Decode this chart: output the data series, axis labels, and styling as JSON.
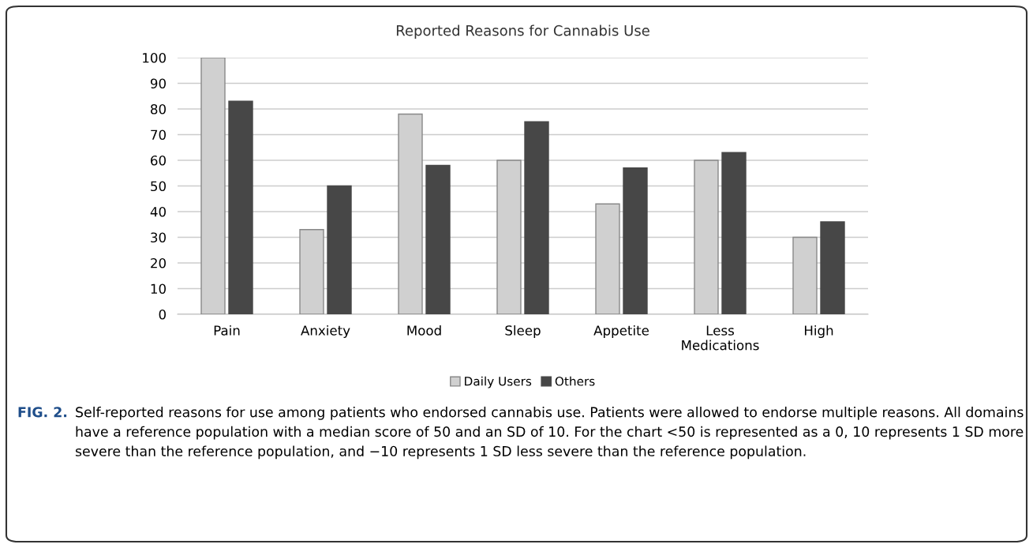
{
  "chart_data": {
    "type": "bar",
    "title": "Reported Reasons for Cannabis Use",
    "categories": [
      "Pain",
      "Anxiety",
      "Mood",
      "Sleep",
      "Appetite",
      "Less\nMedications",
      "High"
    ],
    "series": [
      {
        "name": "Daily Users",
        "color": "#d0d0d0",
        "values": [
          100,
          33,
          78,
          60,
          43,
          60,
          30
        ]
      },
      {
        "name": "Others",
        "color": "#474747",
        "values": [
          83,
          50,
          58,
          75,
          57,
          63,
          36
        ]
      }
    ],
    "ylim": [
      0,
      100
    ],
    "yticks": [
      0,
      10,
      20,
      30,
      40,
      50,
      60,
      70,
      80,
      90,
      100
    ],
    "grid": "y",
    "legend": "bottom",
    "annotations": [
      "FIG. 2.",
      "Self-reported reasons for use among patients who endorsed cannabis use. Patients were allowed to endorse multiple reasons. All domains have a reference population with a median score of 50 and an SD of 10. For the chart <50 is represented as a 0, 10 represents 1 SD more severe than the reference population, and −10 represents 1 SD less severe than the reference population."
    ]
  }
}
